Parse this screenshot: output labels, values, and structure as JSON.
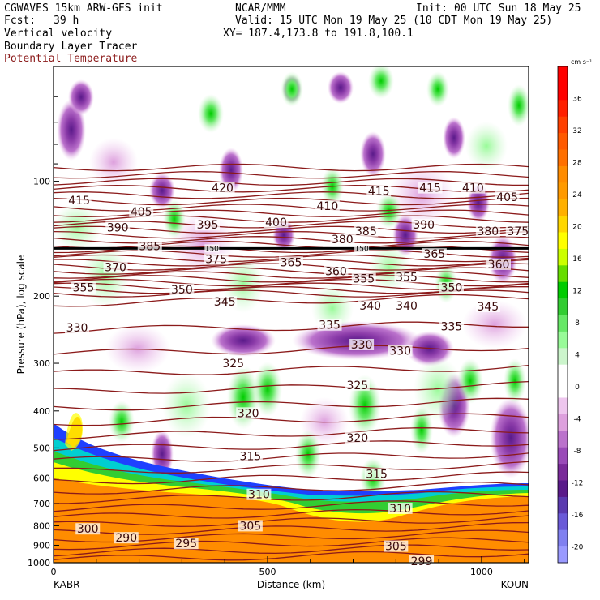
{
  "header": {
    "model": "CGWAVES 15km ARW-GFS init",
    "source": "NCAR/MMM",
    "init": "Init: 00 UTC Sun 18 May 25",
    "fcst_label": "Fcst:",
    "fcst_value": "39 h",
    "valid": "Valid: 15 UTC Mon 19 May 25 (10 CDT Mon 19 May 25)",
    "field1": "Vertical velocity",
    "field2": "Boundary Layer Tracer",
    "field3": "Potential Temperature",
    "xy": "XY= 187.4,173.8 to 191.8,100.1"
  },
  "colors": {
    "theta": "#8b1a1a",
    "tracer_orange": "#ff8c00",
    "tracer_yellow": "#ffff00",
    "tracer_green": "#32cd32",
    "tracer_cyan": "#00ced1",
    "tracer_blue": "#1e40ff"
  },
  "chart_data": {
    "type": "heatmap",
    "xlabel": "Distance (km)",
    "ylabel": "Pressure (hPa), log scale",
    "xlim": [
      0,
      1110
    ],
    "ylim": [
      1000,
      50
    ],
    "y_scale": "log",
    "x_ticks": [
      0,
      500,
      1000
    ],
    "y_ticks": [
      100,
      200,
      300,
      400,
      500,
      600,
      700,
      800,
      900,
      1000
    ],
    "left_station": "KABR",
    "right_station": "KOUN",
    "colorbar": {
      "unit": "cm s⁻¹",
      "ticks": [
        -20,
        -16,
        -12,
        -8,
        -4,
        0,
        4,
        8,
        12,
        16,
        20,
        24,
        28,
        32,
        36
      ],
      "colors": [
        "#9a9aff",
        "#8080f0",
        "#6a5ad8",
        "#5a3ab0",
        "#5a1a8a",
        "#7a2a9a",
        "#9a4ab8",
        "#bb72cc",
        "#dda0dd",
        "#eec6ee",
        "#ffffff",
        "#ffffff",
        "#ccf5cc",
        "#98fb98",
        "#66e866",
        "#32cd32",
        "#00cc00",
        "#66dd00",
        "#ccff00",
        "#ffff00",
        "#ffd700",
        "#ffb000",
        "#ff9a00",
        "#ff8c00",
        "#ff7000",
        "#ff5a00",
        "#ff4000",
        "#ff2000",
        "#ff0000",
        "#ff0000"
      ]
    },
    "theta_labels": [
      {
        "text": "415",
        "x": 60,
        "p": 112
      },
      {
        "text": "420",
        "x": 395,
        "p": 104
      },
      {
        "text": "405",
        "x": 205,
        "p": 120
      },
      {
        "text": "410",
        "x": 640,
        "p": 116
      },
      {
        "text": "415",
        "x": 760,
        "p": 106
      },
      {
        "text": "415",
        "x": 880,
        "p": 104
      },
      {
        "text": "410",
        "x": 980,
        "p": 104
      },
      {
        "text": "405",
        "x": 1060,
        "p": 110
      },
      {
        "text": "390",
        "x": 150,
        "p": 132
      },
      {
        "text": "395",
        "x": 360,
        "p": 130
      },
      {
        "text": "400",
        "x": 520,
        "p": 128
      },
      {
        "text": "385",
        "x": 730,
        "p": 135
      },
      {
        "text": "390",
        "x": 865,
        "p": 130
      },
      {
        "text": "380",
        "x": 1015,
        "p": 135
      },
      {
        "text": "375",
        "x": 1085,
        "p": 135
      },
      {
        "text": "385",
        "x": 225,
        "p": 148
      },
      {
        "text": "380",
        "x": 675,
        "p": 142
      },
      {
        "text": "150",
        "x": 370,
        "p": 150
      },
      {
        "text": "375",
        "x": 380,
        "p": 160
      },
      {
        "text": "150",
        "x": 720,
        "p": 150
      },
      {
        "text": "370",
        "x": 145,
        "p": 168
      },
      {
        "text": "365",
        "x": 555,
        "p": 163
      },
      {
        "text": "365",
        "x": 890,
        "p": 155
      },
      {
        "text": "360",
        "x": 660,
        "p": 172
      },
      {
        "text": "360",
        "x": 1040,
        "p": 165
      },
      {
        "text": "355",
        "x": 70,
        "p": 190
      },
      {
        "text": "355",
        "x": 725,
        "p": 180
      },
      {
        "text": "355",
        "x": 825,
        "p": 178
      },
      {
        "text": "350",
        "x": 300,
        "p": 192
      },
      {
        "text": "350",
        "x": 930,
        "p": 190
      },
      {
        "text": "345",
        "x": 400,
        "p": 207
      },
      {
        "text": "345",
        "x": 1015,
        "p": 213
      },
      {
        "text": "340",
        "x": 740,
        "p": 212
      },
      {
        "text": "340",
        "x": 825,
        "p": 212
      },
      {
        "text": "330",
        "x": 55,
        "p": 242
      },
      {
        "text": "335",
        "x": 645,
        "p": 238
      },
      {
        "text": "335",
        "x": 930,
        "p": 240
      },
      {
        "text": "330",
        "x": 720,
        "p": 268
      },
      {
        "text": "330",
        "x": 810,
        "p": 278
      },
      {
        "text": "325",
        "x": 420,
        "p": 300
      },
      {
        "text": "325",
        "x": 710,
        "p": 342
      },
      {
        "text": "320",
        "x": 455,
        "p": 405
      },
      {
        "text": "320",
        "x": 710,
        "p": 470
      },
      {
        "text": "315",
        "x": 460,
        "p": 525
      },
      {
        "text": "315",
        "x": 755,
        "p": 585
      },
      {
        "text": "310",
        "x": 480,
        "p": 662
      },
      {
        "text": "310",
        "x": 810,
        "p": 720
      },
      {
        "text": "305",
        "x": 460,
        "p": 800
      },
      {
        "text": "305",
        "x": 800,
        "p": 905
      },
      {
        "text": "300",
        "x": 80,
        "p": 815
      },
      {
        "text": "290",
        "x": 170,
        "p": 860
      },
      {
        "text": "295",
        "x": 310,
        "p": 890
      },
      {
        "text": "299",
        "x": 860,
        "p": 990
      }
    ]
  }
}
